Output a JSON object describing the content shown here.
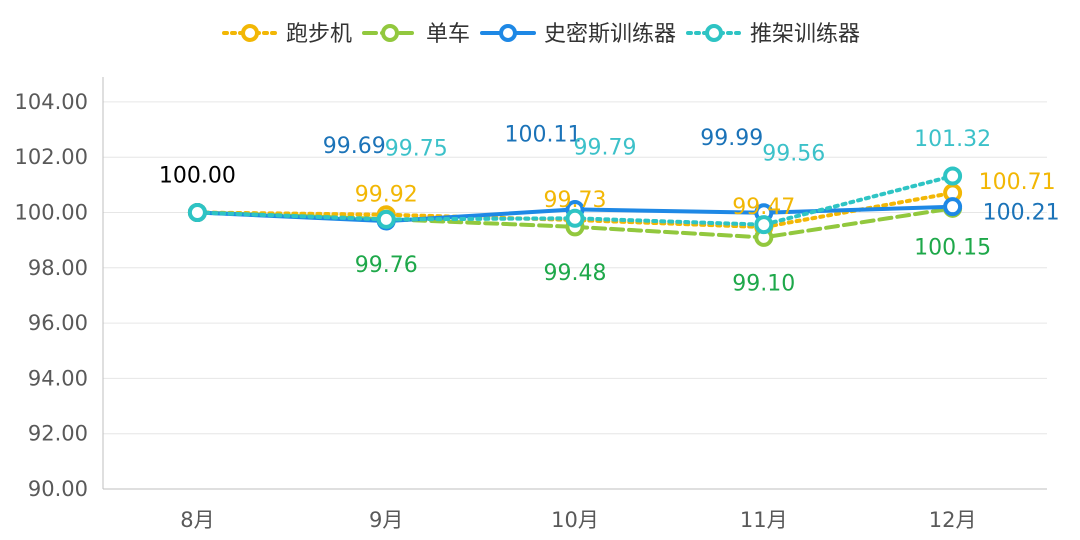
{
  "chart_data": {
    "type": "line",
    "categories": [
      "8月",
      "9月",
      "10月",
      "11月",
      "12月"
    ],
    "ylim": [
      90,
      104
    ],
    "yticks": [
      "90.00",
      "92.00",
      "94.00",
      "96.00",
      "98.00",
      "100.00",
      "102.00",
      "104.00"
    ],
    "grid": true,
    "legend_position": "top-center",
    "series": [
      {
        "name": "跑步机",
        "color": "#F2B705",
        "dash": "dotted",
        "values": [
          100.0,
          99.92,
          99.73,
          99.47,
          100.71
        ],
        "labels": [
          "",
          "99.92",
          "99.73",
          "99.47",
          "100.71"
        ]
      },
      {
        "name": "单车",
        "color": "#92C83E",
        "label_color": "#1EA84A",
        "dash": "dashed",
        "values": [
          100.0,
          99.76,
          99.48,
          99.1,
          100.15
        ],
        "labels": [
          "",
          "99.76",
          "99.48",
          "99.10",
          "100.15"
        ]
      },
      {
        "name": "史密斯训练器",
        "color": "#1E88E5",
        "label_color": "#1B73B8",
        "dash": "solid",
        "values": [
          100.0,
          99.69,
          100.11,
          99.99,
          100.21
        ],
        "labels": [
          "100.00",
          "99.69",
          "100.11",
          "99.99",
          "100.21"
        ]
      },
      {
        "name": "推架训练器",
        "color": "#2EC4C4",
        "label_color": "#3CC1C9",
        "dash": "dotted",
        "values": [
          100.0,
          99.75,
          99.79,
          99.56,
          101.32
        ],
        "labels": [
          "",
          "99.75",
          "99.79",
          "99.56",
          "101.32"
        ]
      }
    ]
  }
}
